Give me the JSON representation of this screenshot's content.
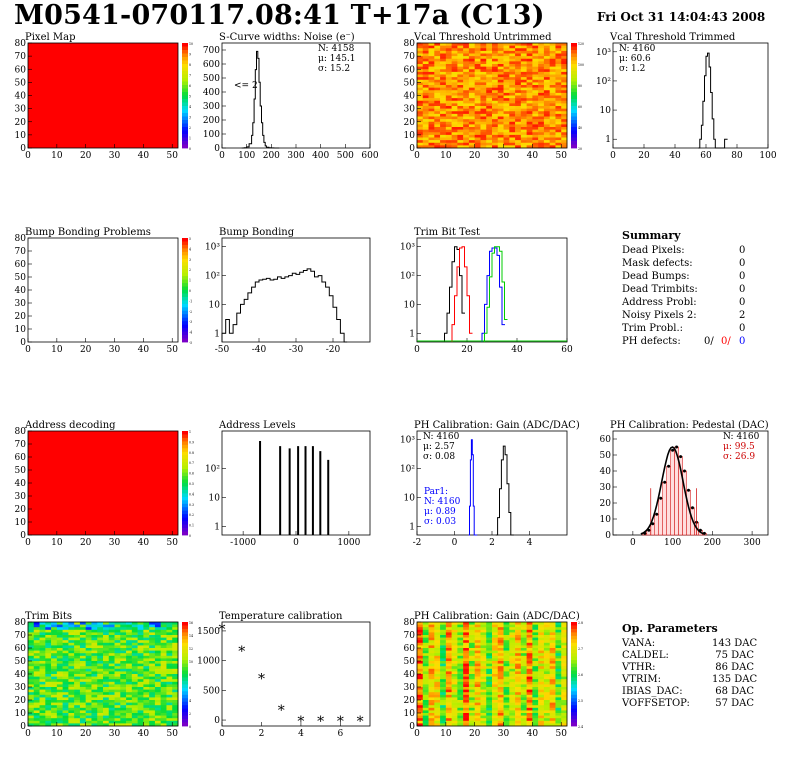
{
  "header": {
    "title": "M0541-070117.08:41 T+17a (C13)",
    "date": "Fri Oct 31 14:04:43 2008"
  },
  "colors": {
    "red": "#ff0000",
    "blue": "#0000ff",
    "green": "#00cc00",
    "black": "#000000"
  },
  "summary": {
    "heading": "Summary",
    "rows": [
      {
        "label": "Dead Pixels:",
        "value": "0"
      },
      {
        "label": "Mask defects:",
        "value": "0"
      },
      {
        "label": "Dead Bumps:",
        "value": "0"
      },
      {
        "label": "Dead Trimbits:",
        "value": "0"
      },
      {
        "label": "Address Probl:",
        "value": "0"
      },
      {
        "label": "Noisy Pixels 2:",
        "value": "2"
      },
      {
        "label": "Trim Probl.:",
        "value": "0"
      }
    ],
    "ph_label": "PH defects:",
    "ph_values": [
      "0/",
      "0/",
      "0"
    ]
  },
  "op_params": {
    "heading": "Op. Parameters",
    "rows": [
      {
        "label": "VANA:",
        "value": "143 DAC"
      },
      {
        "label": "CALDEL:",
        "value": "75 DAC"
      },
      {
        "label": "VTHR:",
        "value": "86 DAC"
      },
      {
        "label": "VTRIM:",
        "value": "135 DAC"
      },
      {
        "label": "IBIAS_DAC:",
        "value": "68 DAC"
      },
      {
        "label": "VOFFSETOP:",
        "value": "57 DAC"
      }
    ]
  },
  "chart_data": [
    {
      "id": "pixel-map",
      "type": "heatmap",
      "title": "Pixel Map",
      "xlim": [
        0,
        52
      ],
      "ylim": [
        0,
        80
      ],
      "xticks": [
        "0",
        "10",
        "20",
        "30",
        "40",
        "50"
      ],
      "yticks": [
        "0",
        "10",
        "20",
        "30",
        "40",
        "50",
        "60",
        "70",
        "80"
      ],
      "fill": "uniform-red",
      "palette_ticks": [
        "10",
        "9",
        "8",
        "7",
        "6",
        "5",
        "4",
        "3",
        "2",
        "1",
        "0"
      ]
    },
    {
      "id": "scurve-noise",
      "type": "line",
      "title": "S-Curve widths: Noise (e⁻)",
      "xlim": [
        0,
        600
      ],
      "ylim": [
        0,
        750
      ],
      "xticks": [
        "0",
        "100",
        "200",
        "300",
        "400",
        "500",
        "600"
      ],
      "yticks": [
        "0",
        "100",
        "200",
        "300",
        "400",
        "500",
        "600",
        "700"
      ],
      "stats": [
        "N: 4158",
        "μ: 145.1",
        "σ: 15.2"
      ],
      "annotation": "<= 2",
      "x": [
        80,
        90,
        100,
        110,
        120,
        125,
        130,
        135,
        140,
        145,
        150,
        155,
        160,
        165,
        170,
        175,
        180,
        190,
        200,
        210,
        220
      ],
      "values": [
        0,
        2,
        8,
        30,
        90,
        180,
        350,
        560,
        690,
        640,
        470,
        300,
        180,
        90,
        40,
        15,
        6,
        2,
        1,
        0,
        0
      ]
    },
    {
      "id": "vcal-untrimmed",
      "type": "heatmap",
      "title": "Vcal Threshold Untrimmed",
      "xlim": [
        0,
        52
      ],
      "ylim": [
        0,
        80
      ],
      "xticks": [
        "0",
        "10",
        "20",
        "30",
        "40",
        "50"
      ],
      "yticks": [
        "0",
        "10",
        "20",
        "30",
        "40",
        "50",
        "60",
        "70",
        "80"
      ],
      "fill": "orange-noise",
      "palette_ticks": [
        "120",
        "100",
        "80",
        "60",
        "40",
        "20"
      ]
    },
    {
      "id": "vcal-trimmed",
      "type": "line",
      "title": "Vcal Threshold Trimmed",
      "xlim": [
        0,
        100
      ],
      "ylim_log": [
        0.5,
        2000
      ],
      "xticks": [
        "0",
        "20",
        "40",
        "60",
        "80",
        "100"
      ],
      "yticks": [
        "1",
        "10",
        "10²",
        "10³"
      ],
      "stats": [
        "N: 4160",
        "μ: 60.6",
        "σ: 1.2"
      ],
      "x": [
        55,
        56,
        57,
        58,
        59,
        60,
        61,
        62,
        63,
        64,
        65,
        66,
        67,
        72
      ],
      "values": [
        0,
        1,
        3,
        20,
        150,
        700,
        900,
        300,
        40,
        5,
        1,
        0,
        0,
        1
      ]
    },
    {
      "id": "bump-map",
      "type": "heatmap",
      "title": "Bump Bonding Problems",
      "xlim": [
        0,
        52
      ],
      "ylim": [
        0,
        80
      ],
      "xticks": [
        "0",
        "10",
        "20",
        "30",
        "40",
        "50"
      ],
      "yticks": [
        "0",
        "10",
        "20",
        "30",
        "40",
        "50",
        "60",
        "70",
        "80"
      ],
      "fill": "empty",
      "palette_ticks": [
        "5",
        "4",
        "3",
        "2",
        "1",
        "0",
        "-1",
        "-2",
        "-3",
        "-4",
        "-5"
      ]
    },
    {
      "id": "bump-bonding",
      "type": "line",
      "title": "Bump Bonding",
      "xlim": [
        -50,
        -10
      ],
      "ylim_log": [
        0.5,
        2000
      ],
      "xticks": [
        "-50",
        "-40",
        "-30",
        "-20"
      ],
      "yticks": [
        "1",
        "10",
        "10²",
        "10³"
      ],
      "x": [
        -50,
        -49,
        -48,
        -47,
        -46,
        -45,
        -44,
        -43,
        -42,
        -41,
        -40,
        -39,
        -38,
        -37,
        -36,
        -35,
        -34,
        -33,
        -32,
        -31,
        -30,
        -29,
        -28,
        -27,
        -26,
        -25,
        -24,
        -23,
        -22,
        -21,
        -20,
        -19,
        -18,
        -17
      ],
      "values": [
        1,
        3,
        1,
        2,
        5,
        10,
        15,
        25,
        40,
        60,
        70,
        75,
        80,
        70,
        75,
        90,
        80,
        90,
        100,
        120,
        110,
        130,
        150,
        170,
        140,
        90,
        100,
        60,
        40,
        20,
        8,
        3,
        1,
        0
      ]
    },
    {
      "id": "trim-bit-test",
      "type": "line",
      "title": "Trim Bit Test",
      "xlim": [
        0,
        60
      ],
      "ylim_log": [
        0.5,
        2000
      ],
      "xticks": [
        "0",
        "20",
        "40",
        "60"
      ],
      "yticks": [
        "1",
        "10",
        "10²",
        "10³"
      ],
      "series": [
        {
          "color": "#000000",
          "x": [
            11,
            12,
            13,
            14,
            15,
            16,
            17,
            18
          ],
          "values": [
            1,
            5,
            40,
            300,
            1000,
            800,
            100,
            5
          ]
        },
        {
          "color": "#ff0000",
          "x": [
            14,
            15,
            16,
            17,
            18,
            19,
            20,
            21
          ],
          "values": [
            2,
            20,
            200,
            900,
            1000,
            200,
            20,
            1
          ]
        },
        {
          "color": "#0000ff",
          "x": [
            26,
            27,
            28,
            29,
            30,
            31,
            32,
            33,
            34
          ],
          "values": [
            1,
            10,
            100,
            700,
            900,
            900,
            500,
            40,
            2
          ]
        },
        {
          "color": "#00cc00",
          "x": [
            27,
            28,
            29,
            30,
            31,
            32,
            33,
            34,
            35
          ],
          "values": [
            1,
            8,
            90,
            600,
            1000,
            1000,
            700,
            60,
            3
          ]
        }
      ]
    },
    {
      "id": "address-decoding",
      "type": "heatmap",
      "title": "Address decoding",
      "xlim": [
        0,
        52
      ],
      "ylim": [
        0,
        80
      ],
      "xticks": [
        "0",
        "10",
        "20",
        "30",
        "40",
        "50"
      ],
      "yticks": [
        "0",
        "10",
        "20",
        "30",
        "40",
        "50",
        "60",
        "70",
        "80"
      ],
      "fill": "uniform-red",
      "palette_ticks": [
        "1",
        "0.9",
        "0.8",
        "0.7",
        "0.6",
        "0.5",
        "0.4",
        "0.3",
        "0.2",
        "0.1",
        "0"
      ]
    },
    {
      "id": "address-levels",
      "type": "bar",
      "title": "Address Levels",
      "xlim": [
        -1400,
        1400
      ],
      "ylim_log": [
        0.5,
        2000
      ],
      "xticks": [
        "-1000",
        "0",
        "1000"
      ],
      "yticks": [
        "1",
        "10",
        "10²"
      ],
      "x": [
        -680,
        -300,
        -120,
        40,
        180,
        320,
        460,
        610
      ],
      "values": [
        900,
        600,
        500,
        600,
        600,
        600,
        400,
        200
      ]
    },
    {
      "id": "ph-gain",
      "type": "line",
      "title": "PH Calibration: Gain (ADC/DAC)",
      "xlim": [
        -2,
        6
      ],
      "ylim_log": [
        0.5,
        2000
      ],
      "xticks": [
        "-2",
        "0",
        "2",
        "4"
      ],
      "yticks": [
        "1",
        "10",
        "10²",
        "10³"
      ],
      "stats": [
        "N: 4160",
        "μ: 2.57",
        "σ: 0.08"
      ],
      "par1": [
        "Par1:",
        "N: 4160",
        "μ: 0.89",
        "σ: 0.03"
      ],
      "series": [
        {
          "color": "#0000ff",
          "x": [
            0.75,
            0.8,
            0.85,
            0.9,
            0.95,
            1.0,
            1.05
          ],
          "values": [
            0,
            5,
            200,
            1000,
            300,
            5,
            0
          ]
        },
        {
          "color": "#000000",
          "x": [
            2.2,
            2.3,
            2.4,
            2.5,
            2.6,
            2.7,
            2.8,
            2.9,
            3.0
          ],
          "values": [
            0,
            2,
            20,
            200,
            600,
            300,
            30,
            3,
            0
          ]
        }
      ]
    },
    {
      "id": "ph-pedestal",
      "type": "bar",
      "title": "PH Calibration: Pedestal (DAC)",
      "xlim": [
        -50,
        340
      ],
      "ylim": [
        0,
        65
      ],
      "xticks": [
        "0",
        "100",
        "200",
        "300"
      ],
      "yticks": [
        "0",
        "10",
        "20",
        "30",
        "40",
        "50",
        "60"
      ],
      "stats_black": "N: 4160",
      "stats_red": [
        "μ: 99.5",
        "σ: 26.9"
      ],
      "x": [
        30,
        40,
        50,
        60,
        70,
        80,
        90,
        100,
        110,
        120,
        130,
        140,
        150,
        160,
        170,
        180
      ],
      "values": [
        1,
        3,
        7,
        13,
        23,
        33,
        43,
        53,
        55,
        49,
        40,
        28,
        17,
        8,
        3,
        1
      ]
    },
    {
      "id": "trim-bits",
      "type": "heatmap",
      "title": "Trim Bits",
      "xlim": [
        0,
        52
      ],
      "ylim": [
        0,
        80
      ],
      "xticks": [
        "0",
        "10",
        "20",
        "30",
        "40",
        "50"
      ],
      "yticks": [
        "0",
        "10",
        "20",
        "30",
        "40",
        "50",
        "60",
        "70",
        "80"
      ],
      "fill": "green-noise",
      "palette_ticks": [
        "16",
        "14",
        "12",
        "10",
        "8",
        "6",
        "4",
        "2",
        "0"
      ]
    },
    {
      "id": "temperature-calibration",
      "type": "scatter",
      "title": "Temperature calibration",
      "xlim": [
        0,
        7.5
      ],
      "ylim": [
        -100,
        1650
      ],
      "xticks": [
        "0",
        "2",
        "4",
        "6"
      ],
      "yticks": [
        "0",
        "500",
        "1000",
        "1500"
      ],
      "x": [
        0,
        1,
        2,
        3,
        4,
        5,
        6,
        7
      ],
      "values": [
        1530,
        1160,
        700,
        170,
        -20,
        -20,
        -20,
        -20
      ]
    },
    {
      "id": "ph-gain-map",
      "type": "heatmap",
      "title": "PH Calibration: Gain (ADC/DAC)",
      "xlim": [
        0,
        52
      ],
      "ylim": [
        0,
        80
      ],
      "xticks": [
        "0",
        "10",
        "20",
        "30",
        "40",
        "50"
      ],
      "yticks": [
        "0",
        "10",
        "20",
        "30",
        "40",
        "50",
        "60",
        "70",
        "80"
      ],
      "fill": "column-stripes",
      "palette_ticks": [
        "2.8",
        "2.7",
        "2.6",
        "2.5",
        "2.4"
      ]
    }
  ]
}
